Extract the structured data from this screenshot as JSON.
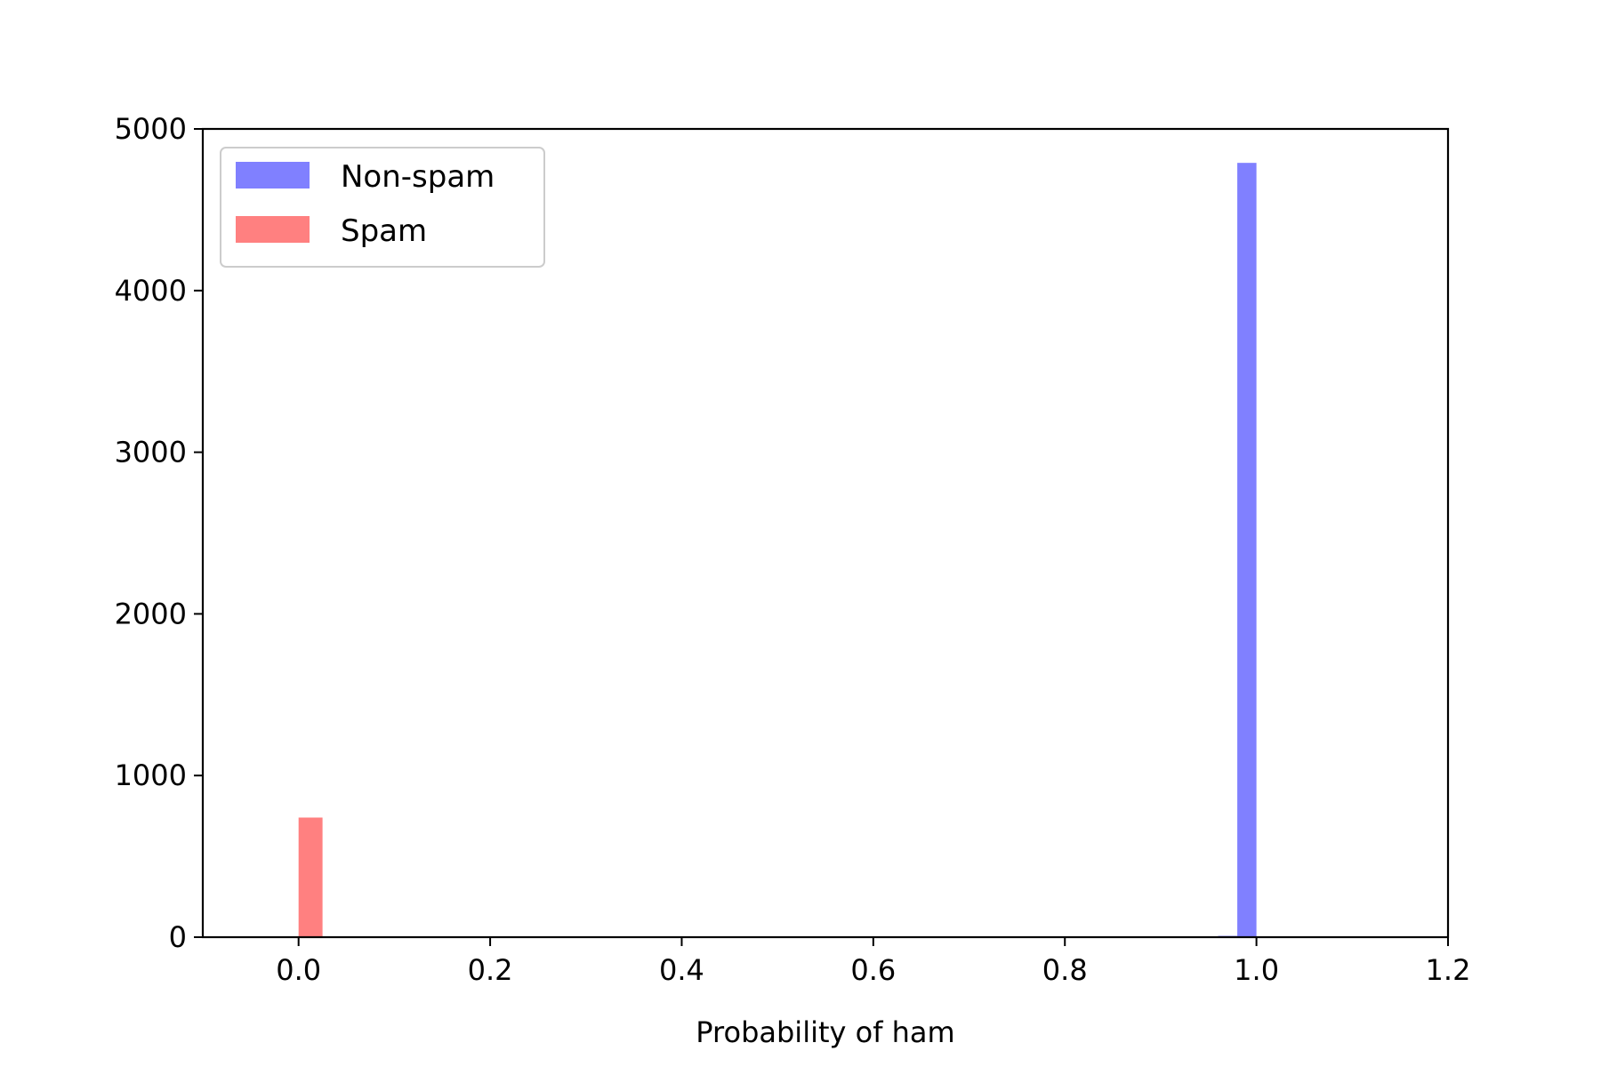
{
  "chart_data": {
    "type": "bar",
    "xlabel": "Probability of ham",
    "ylabel": "",
    "xlim": [
      -0.1,
      1.2
    ],
    "ylim": [
      0,
      5000
    ],
    "xticks": [
      "0.0",
      "0.2",
      "0.4",
      "0.6",
      "0.8",
      "1.0",
      "1.2"
    ],
    "yticks": [
      "0",
      "1000",
      "2000",
      "3000",
      "4000",
      "5000"
    ],
    "grid": false,
    "legend_position": "top-left",
    "series": [
      {
        "name": "Non-spam",
        "color": "#8080ff",
        "bins": [
          {
            "x0": 0.96,
            "x1": 0.98,
            "value": 8
          },
          {
            "x0": 0.98,
            "x1": 1.0,
            "value": 4790
          }
        ]
      },
      {
        "name": "Spam",
        "color": "#ff8080",
        "bins": [
          {
            "x0": 0.0,
            "x1": 0.025,
            "value": 740
          }
        ]
      }
    ]
  }
}
